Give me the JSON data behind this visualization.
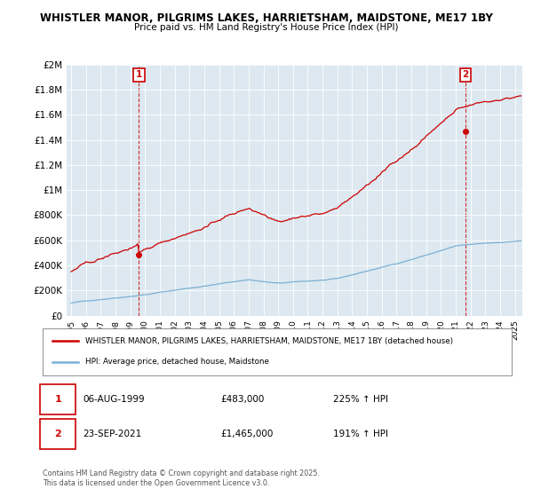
{
  "title1": "WHISTLER MANOR, PILGRIMS LAKES, HARRIETSHAM, MAIDSTONE, ME17 1BY",
  "title2": "Price paid vs. HM Land Registry's House Price Index (HPI)",
  "ylabel_ticks": [
    "£0",
    "£200K",
    "£400K",
    "£600K",
    "£800K",
    "£1M",
    "£1.2M",
    "£1.4M",
    "£1.6M",
    "£1.8M",
    "£2M"
  ],
  "ytick_values": [
    0,
    200000,
    400000,
    600000,
    800000,
    1000000,
    1200000,
    1400000,
    1600000,
    1800000,
    2000000
  ],
  "ylim": [
    0,
    2000000
  ],
  "sale1_price": 483000,
  "sale2_price": 1465000,
  "sale1_date": "06-AUG-1999",
  "sale2_date": "23-SEP-2021",
  "sale1_hpi_text": "225% ↑ HPI",
  "sale2_hpi_text": "191% ↑ HPI",
  "legend_house": "WHISTLER MANOR, PILGRIMS LAKES, HARRIETSHAM, MAIDSTONE, ME17 1BY (detached house)",
  "legend_hpi": "HPI: Average price, detached house, Maidstone",
  "footer": "Contains HM Land Registry data © Crown copyright and database right 2025.\nThis data is licensed under the Open Government Licence v3.0.",
  "house_color": "#cc0000",
  "hpi_color": "#7ab0d4",
  "bg_color": "#ffffff",
  "chart_bg": "#dde8f0",
  "grid_color": "#ffffff",
  "annotation_color": "#cc0000",
  "vline_color": "#cc0000"
}
